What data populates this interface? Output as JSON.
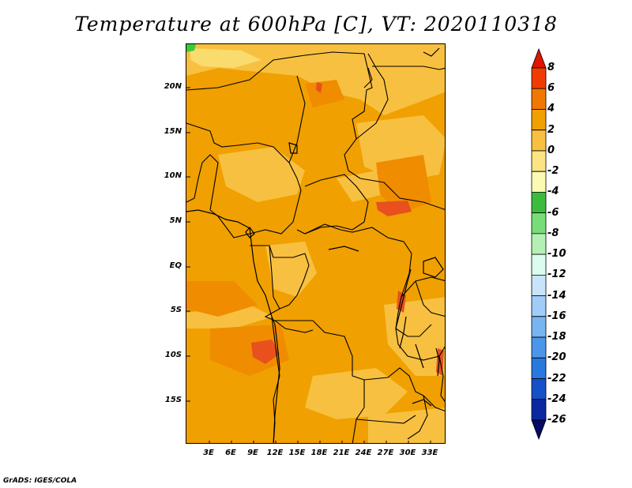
{
  "title": "Temperature at 600hPa [C], VT: 2020110318",
  "credit": "GrADS: IGES/COLA",
  "map": {
    "lat_labels": [
      "20N",
      "15N",
      "10N",
      "5N",
      "EQ",
      "5S",
      "10S",
      "15S"
    ],
    "lon_labels": [
      "3E",
      "6E",
      "9E",
      "12E",
      "15E",
      "18E",
      "21E",
      "24E",
      "27E",
      "30E",
      "33E"
    ],
    "field_colors": {
      "dominant": "#f0a000",
      "warm": "#f08c00",
      "cool": "#f8c040",
      "coolest": "#fadc6e",
      "hot": "#e8501e",
      "green": "#3cc83c"
    }
  },
  "colorbar": {
    "labels": [
      "8",
      "6",
      "4",
      "2",
      "0",
      "-2",
      "-4",
      "-6",
      "-8",
      "-10",
      "-12",
      "-14",
      "-16",
      "-18",
      "-20",
      "-22",
      "-24",
      "-26"
    ],
    "colors": [
      "#e01400",
      "#f03c00",
      "#f07800",
      "#f0a000",
      "#f8c040",
      "#fae484",
      "#fafab4",
      "#3cbc3c",
      "#78dc78",
      "#b4f0b4",
      "#dcfcf0",
      "#c8e4fa",
      "#a0ccf8",
      "#78b4f0",
      "#4c96ea",
      "#2878e0",
      "#1450c8",
      "#0a28a0",
      "#050a64"
    ]
  }
}
